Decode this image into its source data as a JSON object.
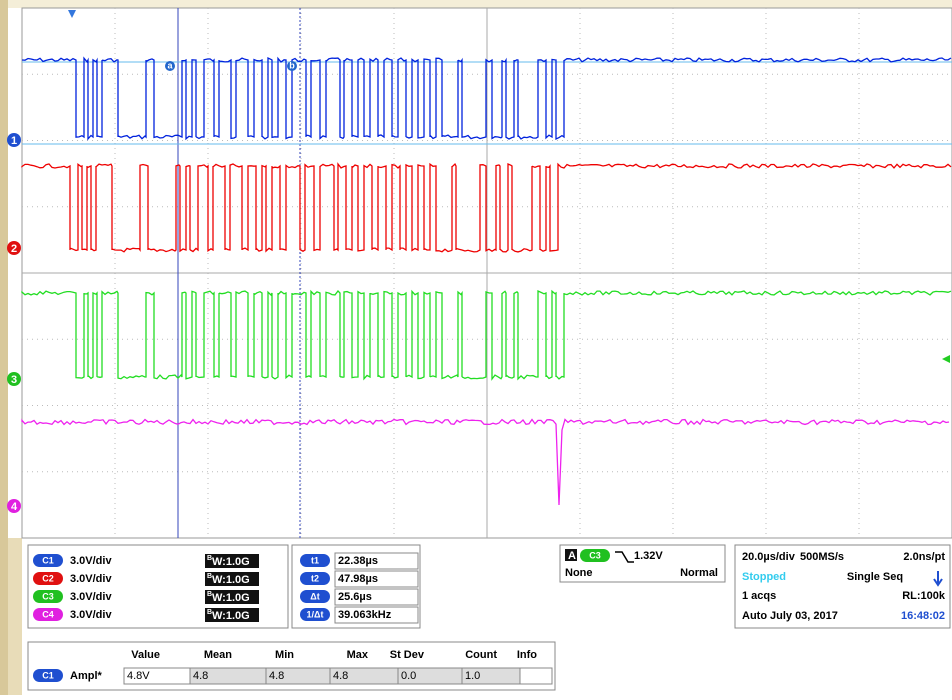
{
  "screen": {
    "trace_labels": [
      "1",
      "2",
      "3",
      "4"
    ],
    "cursor_labels": [
      "a",
      "b"
    ]
  },
  "channels": [
    {
      "id": "C1",
      "scale": "3.0V/div",
      "bw_sup": "B",
      "bw": "W:1.0G"
    },
    {
      "id": "C2",
      "scale": "3.0V/div",
      "bw_sup": "B",
      "bw": "W:1.0G"
    },
    {
      "id": "C3",
      "scale": "3.0V/div",
      "bw_sup": "B",
      "bw": "W:1.0G"
    },
    {
      "id": "C4",
      "scale": "3.0V/div",
      "bw_sup": "B",
      "bw": "W:1.0G"
    }
  ],
  "cursors": [
    {
      "label": "t1",
      "value": "22.38µs"
    },
    {
      "label": "t2",
      "value": "47.98µs"
    },
    {
      "label": "Δt",
      "value": "25.6µs"
    },
    {
      "label": "1/Δt",
      "value": "39.063kHz"
    }
  ],
  "trigger": {
    "mode": "A",
    "source": "C3",
    "level": "1.32V",
    "coupling": "None",
    "type": "Normal"
  },
  "timebase": {
    "scale": "20.0µs/div",
    "rate": "500MS/s",
    "resolution": "2.0ns/pt",
    "state": "Stopped",
    "acq_mode": "Single Seq",
    "acqs": "1 acqs",
    "record": "RL:100k",
    "trigger_mode": "Auto",
    "date": "July 03, 2017",
    "time": "16:48:02"
  },
  "measurements": {
    "headers": [
      "Value",
      "Mean",
      "Min",
      "Max",
      "St Dev",
      "Count",
      "Info"
    ],
    "rows": [
      {
        "source": "C1",
        "name": "Ampl*",
        "cells": [
          "4.8V",
          "4.8",
          "4.8",
          "4.8",
          "0.0",
          "1.0"
        ]
      }
    ]
  }
}
